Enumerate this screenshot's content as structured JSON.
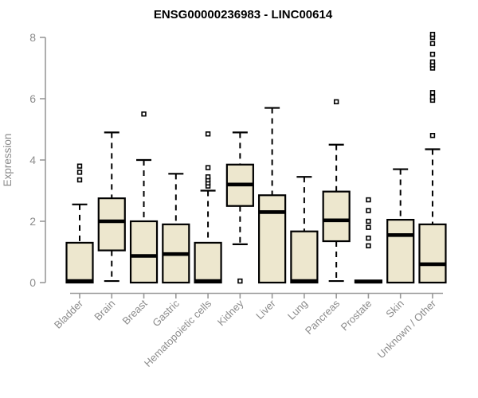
{
  "chart_data": {
    "type": "boxplot",
    "title": "ENSG00000236983 - LINC00614",
    "ylabel": "Expression",
    "xlabel": "",
    "ylim": [
      0,
      8
    ],
    "yticks": [
      0,
      2,
      4,
      6,
      8
    ],
    "grid": false,
    "legend": null,
    "categories": [
      "Bladder",
      "Brain",
      "Breast",
      "Gastric",
      "Hematopoietic cells",
      "Kidney",
      "Liver",
      "Lung",
      "Pancreas",
      "Prostate",
      "Skin",
      "Unknown / Other"
    ],
    "boxes": [
      {
        "category": "Bladder",
        "low": 0,
        "q1": 0,
        "median": 0.05,
        "q3": 1.3,
        "high": 2.55,
        "outliers": [
          3.35,
          3.6,
          3.8
        ]
      },
      {
        "category": "Brain",
        "low": 0.05,
        "q1": 1.05,
        "median": 2.0,
        "q3": 2.75,
        "high": 4.9,
        "outliers": []
      },
      {
        "category": "Breast",
        "low": 0,
        "q1": 0,
        "median": 0.87,
        "q3": 2.0,
        "high": 4.0,
        "outliers": [
          5.5
        ]
      },
      {
        "category": "Gastric",
        "low": 0,
        "q1": 0,
        "median": 0.93,
        "q3": 1.9,
        "high": 3.55,
        "outliers": []
      },
      {
        "category": "Hematopoietic cells",
        "low": 0,
        "q1": 0,
        "median": 0.05,
        "q3": 1.3,
        "high": 3.0,
        "outliers": [
          3.15,
          3.25,
          3.35,
          3.45,
          3.75,
          4.85
        ]
      },
      {
        "category": "Kidney",
        "low": 1.25,
        "q1": 2.5,
        "median": 3.2,
        "q3": 3.85,
        "high": 4.9,
        "outliers": [
          0.05
        ]
      },
      {
        "category": "Liver",
        "low": 0,
        "q1": 0,
        "median": 2.3,
        "q3": 2.85,
        "high": 5.7,
        "outliers": []
      },
      {
        "category": "Lung",
        "low": 0,
        "q1": 0,
        "median": 0.05,
        "q3": 1.67,
        "high": 3.45,
        "outliers": []
      },
      {
        "category": "Pancreas",
        "low": 0.05,
        "q1": 1.35,
        "median": 2.03,
        "q3": 2.97,
        "high": 4.5,
        "outliers": [
          5.9
        ]
      },
      {
        "category": "Prostate",
        "low": 0,
        "q1": 0,
        "median": 0.03,
        "q3": 0.07,
        "high": 0.07,
        "outliers": [
          1.2,
          1.45,
          1.8,
          2.0,
          2.35,
          2.7
        ]
      },
      {
        "category": "Skin",
        "low": 0,
        "q1": 0,
        "median": 1.55,
        "q3": 2.05,
        "high": 3.7,
        "outliers": []
      },
      {
        "category": "Unknown / Other",
        "low": 0,
        "q1": 0,
        "median": 0.6,
        "q3": 1.9,
        "high": 4.35,
        "outliers": [
          4.8,
          5.95,
          6.05,
          6.2,
          7.0,
          7.1,
          7.2,
          7.45,
          7.8,
          8.0,
          8.1
        ]
      }
    ]
  },
  "colors": {
    "box_fill": "#EDE7CE",
    "box_stroke": "#000000",
    "median_stroke": "#000000",
    "whisker_stroke": "#000000",
    "outlier_stroke": "#000000",
    "outlier_fill": "#ffffff",
    "axis_line": "#999999",
    "axis_text": "#8C8C8C",
    "title_text": "#000000",
    "background": "#ffffff"
  }
}
